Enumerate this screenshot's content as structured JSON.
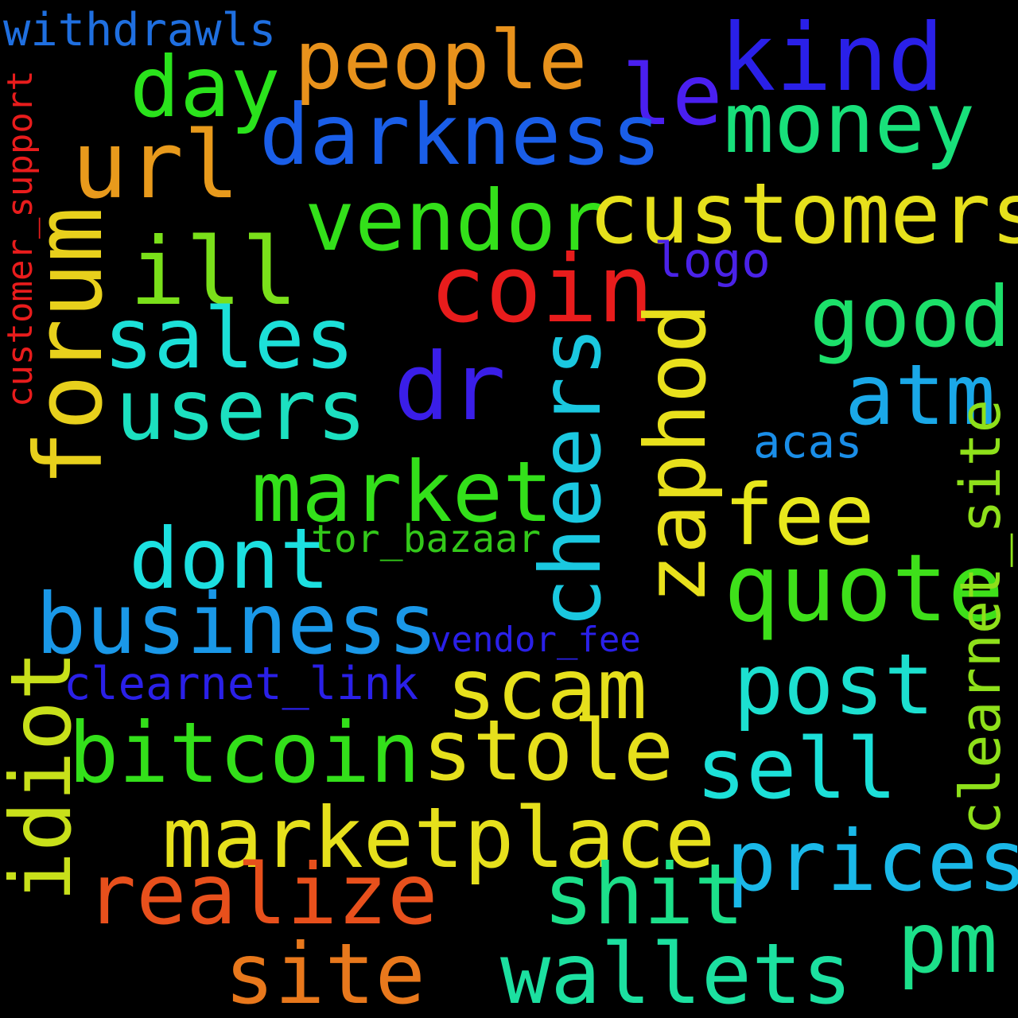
{
  "words": {
    "withdrawls": {
      "text": "withdrawls",
      "color": "#1f6fe0"
    },
    "people": {
      "text": "people",
      "color": "#e8921c"
    },
    "kind": {
      "text": "kind",
      "color": "#2a20e8"
    },
    "day": {
      "text": "day",
      "color": "#2ae31c"
    },
    "le": {
      "text": "le",
      "color": "#4a1ff0"
    },
    "money": {
      "text": "money",
      "color": "#18e07a"
    },
    "darkness": {
      "text": "darkness",
      "color": "#1a5ee8"
    },
    "url": {
      "text": "url",
      "color": "#e89a1c"
    },
    "vendor": {
      "text": "vendor",
      "color": "#33e01a"
    },
    "customers": {
      "text": "customers",
      "color": "#e6e01c"
    },
    "ill": {
      "text": "ill",
      "color": "#7ae01a"
    },
    "logo": {
      "text": "logo",
      "color": "#4a22e8"
    },
    "coin": {
      "text": "coin",
      "color": "#e81c1c"
    },
    "good": {
      "text": "good",
      "color": "#1ce06a"
    },
    "sales": {
      "text": "sales",
      "color": "#1ce0d8"
    },
    "dr": {
      "text": "dr",
      "color": "#3a1ee8"
    },
    "atm": {
      "text": "atm",
      "color": "#1aa8e8"
    },
    "users": {
      "text": "users",
      "color": "#1ce0c0"
    },
    "acas": {
      "text": "acas",
      "color": "#1a8ee8"
    },
    "market": {
      "text": "market",
      "color": "#33e01a"
    },
    "fee": {
      "text": "fee",
      "color": "#e8e81c"
    },
    "dont": {
      "text": "dont",
      "color": "#1ce0e0"
    },
    "tor_bazaar": {
      "text": "tor_bazaar",
      "color": "#33c81a"
    },
    "quote": {
      "text": "quote",
      "color": "#3ee01a"
    },
    "business": {
      "text": "business",
      "color": "#1a98e8"
    },
    "vendor_fee": {
      "text": "vendor_fee",
      "color": "#2a20e8"
    },
    "post": {
      "text": "post",
      "color": "#1ce0d0"
    },
    "clearnet_link": {
      "text": "clearnet_link",
      "color": "#2a20e8"
    },
    "scam": {
      "text": "scam",
      "color": "#e6e01c"
    },
    "stole": {
      "text": "stole",
      "color": "#e6e01c"
    },
    "bitcoin": {
      "text": "bitcoin",
      "color": "#33e01a"
    },
    "sell": {
      "text": "sell",
      "color": "#1ce0d8"
    },
    "marketplace": {
      "text": "marketplace",
      "color": "#e6e01c"
    },
    "prices": {
      "text": "prices",
      "color": "#1ab8e8"
    },
    "realize": {
      "text": "realize",
      "color": "#e8501c"
    },
    "shit": {
      "text": "shit",
      "color": "#1ce08a"
    },
    "pm": {
      "text": "pm",
      "color": "#1ce08a"
    },
    "site": {
      "text": "site",
      "color": "#e8781c"
    },
    "wallets": {
      "text": "wallets",
      "color": "#1ce0a0"
    },
    "customer_support": {
      "text": "customer_support",
      "color": "#e81c1c"
    },
    "forum": {
      "text": "forum",
      "color": "#e8d01c"
    },
    "cheers": {
      "text": "cheers",
      "color": "#1ac8e0"
    },
    "zaphod": {
      "text": "zaphod",
      "color": "#e8e01c"
    },
    "idiot": {
      "text": "idiot",
      "color": "#c8e01a"
    },
    "clearnet_site": {
      "text": "clearnet_site",
      "color": "#8ee01a"
    }
  }
}
